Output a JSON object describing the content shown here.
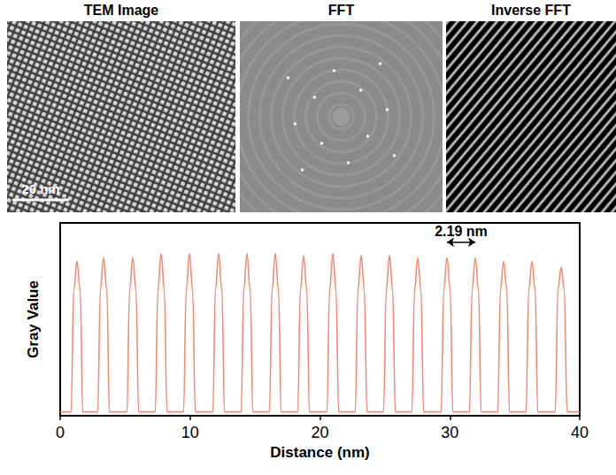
{
  "panels": [
    {
      "title": "TEM Image",
      "scale_bar": "20 nm"
    },
    {
      "title": "FFT"
    },
    {
      "title": "Inverse FFT"
    }
  ],
  "chart_data": {
    "type": "line",
    "xlabel": "Distance (nm)",
    "ylabel": "Gray Value",
    "color": "#f28c79",
    "x": [
      0,
      0.84,
      1.04,
      1.29,
      1.54,
      1.74,
      2.89,
      3.09,
      3.34,
      3.59,
      3.79,
      5.14,
      5.34,
      5.59,
      5.84,
      6.04,
      7.32,
      7.52,
      7.77,
      8.02,
      8.22,
      9.5,
      9.7,
      9.95,
      10.2,
      10.4,
      11.75,
      11.95,
      12.2,
      12.45,
      12.65,
      13.93,
      14.13,
      14.38,
      14.63,
      14.83,
      16.11,
      16.31,
      16.56,
      16.81,
      17.01,
      18.29,
      18.49,
      18.74,
      18.99,
      19.19,
      20.54,
      20.74,
      20.99,
      21.24,
      21.44,
      22.72,
      22.92,
      23.17,
      23.42,
      23.62,
      24.9,
      25.1,
      25.35,
      25.6,
      25.8,
      27.08,
      27.28,
      27.53,
      27.78,
      27.98,
      29.33,
      29.53,
      29.78,
      30.03,
      30.23,
      31.51,
      31.71,
      31.96,
      32.21,
      32.41,
      33.69,
      33.89,
      34.14,
      34.39,
      34.59,
      35.87,
      36.07,
      36.32,
      36.57,
      36.77,
      38.12,
      38.32,
      38.57,
      38.82,
      39.02,
      40
    ],
    "values": [
      2,
      2,
      65,
      80,
      65,
      2,
      2,
      65,
      82,
      65,
      2,
      2,
      65,
      82,
      65,
      2,
      2,
      65,
      84,
      65,
      2,
      2,
      65,
      84,
      65,
      2,
      2,
      65,
      84,
      65,
      2,
      2,
      65,
      84,
      65,
      2,
      2,
      65,
      84,
      65,
      2,
      2,
      65,
      83,
      65,
      2,
      2,
      65,
      84,
      65,
      2,
      2,
      65,
      83,
      65,
      2,
      2,
      65,
      83,
      65,
      2,
      2,
      65,
      82,
      65,
      2,
      2,
      65,
      82,
      65,
      2,
      2,
      65,
      82,
      65,
      2,
      2,
      65,
      80,
      65,
      2,
      2,
      65,
      80,
      65,
      2,
      2,
      65,
      77,
      65,
      2,
      2
    ],
    "xlim": [
      0,
      40
    ],
    "xticks": [
      0,
      10,
      20,
      30,
      40
    ],
    "ylim": [
      0,
      100
    ],
    "tick_labels": "x",
    "grid": false,
    "annotation": {
      "text": "2.19 nm",
      "x": [
        29.78,
        31.96
      ],
      "y": 90
    }
  }
}
